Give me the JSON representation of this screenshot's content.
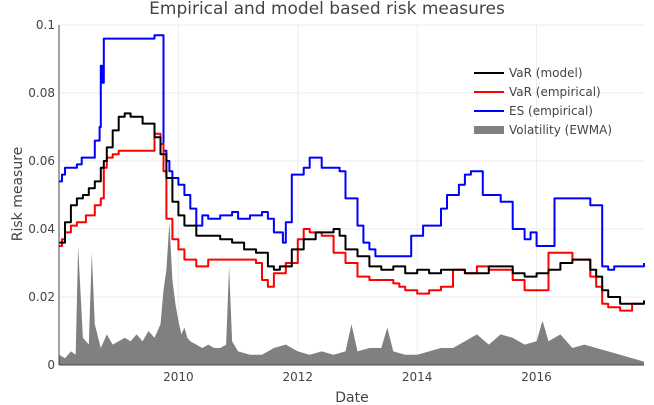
{
  "chart_data": {
    "type": "line",
    "title": "Empirical and model based risk measures",
    "xlabel": "Date",
    "ylabel": "Risk measure",
    "xlim": [
      2008.0,
      2017.8
    ],
    "ylim": [
      0,
      0.1
    ],
    "x_ticks": [
      {
        "value": 2010,
        "label": "2010"
      },
      {
        "value": 2012,
        "label": "2012"
      },
      {
        "value": 2014,
        "label": "2014"
      },
      {
        "value": 2016,
        "label": "2016"
      }
    ],
    "y_ticks": [
      {
        "value": 0,
        "label": "0"
      },
      {
        "value": 0.02,
        "label": "0.02"
      },
      {
        "value": 0.04,
        "label": "0.04"
      },
      {
        "value": 0.06,
        "label": "0.06"
      },
      {
        "value": 0.08,
        "label": "0.08"
      },
      {
        "value": 0.1,
        "label": "0.1"
      }
    ],
    "grid": true,
    "legend_position": "top-right",
    "series": [
      {
        "name": "Volatility (EWMA)",
        "kind": "area",
        "color": "#808080",
        "x": [
          2008.0,
          2008.1,
          2008.2,
          2008.28,
          2008.32,
          2008.4,
          2008.5,
          2008.55,
          2008.6,
          2008.7,
          2008.8,
          2008.9,
          2009.0,
          2009.1,
          2009.2,
          2009.3,
          2009.4,
          2009.5,
          2009.6,
          2009.7,
          2009.75,
          2009.8,
          2009.85,
          2009.9,
          2009.95,
          2010.0,
          2010.05,
          2010.1,
          2010.15,
          2010.2,
          2010.3,
          2010.4,
          2010.5,
          2010.6,
          2010.7,
          2010.8,
          2010.85,
          2010.9,
          2011.0,
          2011.2,
          2011.4,
          2011.6,
          2011.8,
          2012.0,
          2012.2,
          2012.4,
          2012.6,
          2012.8,
          2012.9,
          2013.0,
          2013.2,
          2013.4,
          2013.5,
          2013.6,
          2013.8,
          2014.0,
          2014.2,
          2014.4,
          2014.6,
          2014.8,
          2015.0,
          2015.2,
          2015.4,
          2015.6,
          2015.8,
          2016.0,
          2016.1,
          2016.2,
          2016.4,
          2016.6,
          2016.8,
          2017.0,
          2017.2,
          2017.4,
          2017.6,
          2017.8
        ],
        "values": [
          0.003,
          0.002,
          0.004,
          0.003,
          0.035,
          0.008,
          0.006,
          0.033,
          0.012,
          0.005,
          0.009,
          0.006,
          0.007,
          0.008,
          0.007,
          0.009,
          0.007,
          0.01,
          0.008,
          0.012,
          0.022,
          0.028,
          0.042,
          0.025,
          0.018,
          0.013,
          0.009,
          0.011,
          0.008,
          0.007,
          0.006,
          0.005,
          0.006,
          0.005,
          0.005,
          0.006,
          0.029,
          0.007,
          0.004,
          0.003,
          0.003,
          0.005,
          0.006,
          0.004,
          0.003,
          0.004,
          0.003,
          0.004,
          0.012,
          0.004,
          0.005,
          0.005,
          0.011,
          0.004,
          0.003,
          0.003,
          0.004,
          0.005,
          0.005,
          0.007,
          0.009,
          0.006,
          0.009,
          0.008,
          0.006,
          0.007,
          0.013,
          0.007,
          0.009,
          0.005,
          0.006,
          0.005,
          0.004,
          0.003,
          0.002,
          0.001
        ]
      },
      {
        "name": "ES (empirical)",
        "kind": "line",
        "color": "#0000ff",
        "x": [
          2008.0,
          2008.05,
          2008.1,
          2008.2,
          2008.3,
          2008.38,
          2008.42,
          2008.5,
          2008.6,
          2008.68,
          2008.7,
          2008.72,
          2008.75,
          2008.8,
          2009.0,
          2009.2,
          2009.4,
          2009.6,
          2009.7,
          2009.75,
          2009.8,
          2009.85,
          2009.9,
          2010.0,
          2010.1,
          2010.2,
          2010.3,
          2010.4,
          2010.5,
          2010.7,
          2010.9,
          2011.0,
          2011.2,
          2011.4,
          2011.5,
          2011.6,
          2011.75,
          2011.8,
          2011.9,
          2012.1,
          2012.2,
          2012.4,
          2012.6,
          2012.7,
          2012.8,
          2013.0,
          2013.1,
          2013.2,
          2013.3,
          2013.5,
          2013.7,
          2013.9,
          2014.1,
          2014.3,
          2014.4,
          2014.5,
          2014.7,
          2014.8,
          2014.9,
          2015.0,
          2015.1,
          2015.2,
          2015.4,
          2015.6,
          2015.8,
          2015.9,
          2016.0,
          2016.1,
          2016.3,
          2016.5,
          2016.7,
          2016.9,
          2017.0,
          2017.1,
          2017.2,
          2017.3,
          2017.5,
          2017.6,
          2017.8
        ],
        "values": [
          0.054,
          0.056,
          0.058,
          0.058,
          0.059,
          0.061,
          0.061,
          0.061,
          0.066,
          0.07,
          0.088,
          0.083,
          0.096,
          0.096,
          0.096,
          0.096,
          0.096,
          0.097,
          0.097,
          0.063,
          0.06,
          0.057,
          0.055,
          0.053,
          0.05,
          0.046,
          0.041,
          0.044,
          0.043,
          0.044,
          0.045,
          0.043,
          0.044,
          0.045,
          0.043,
          0.039,
          0.036,
          0.042,
          0.056,
          0.058,
          0.061,
          0.058,
          0.058,
          0.057,
          0.049,
          0.041,
          0.036,
          0.034,
          0.032,
          0.032,
          0.032,
          0.038,
          0.041,
          0.041,
          0.046,
          0.05,
          0.053,
          0.056,
          0.057,
          0.057,
          0.05,
          0.05,
          0.048,
          0.04,
          0.037,
          0.039,
          0.035,
          0.035,
          0.049,
          0.049,
          0.049,
          0.047,
          0.047,
          0.029,
          0.028,
          0.029,
          0.029,
          0.029,
          0.03
        ]
      },
      {
        "name": "VaR (empirical)",
        "kind": "line",
        "color": "#ff0000",
        "x": [
          2008.0,
          2008.05,
          2008.1,
          2008.2,
          2008.3,
          2008.4,
          2008.45,
          2008.5,
          2008.6,
          2008.7,
          2008.75,
          2008.8,
          2008.9,
          2009.0,
          2009.2,
          2009.4,
          2009.6,
          2009.7,
          2009.75,
          2009.8,
          2009.9,
          2010.0,
          2010.1,
          2010.3,
          2010.5,
          2010.7,
          2010.9,
          2011.1,
          2011.3,
          2011.4,
          2011.5,
          2011.6,
          2011.8,
          2012.0,
          2012.1,
          2012.2,
          2012.4,
          2012.6,
          2012.8,
          2013.0,
          2013.2,
          2013.4,
          2013.6,
          2013.7,
          2013.8,
          2014.0,
          2014.2,
          2014.4,
          2014.6,
          2014.8,
          2015.0,
          2015.2,
          2015.4,
          2015.6,
          2015.8,
          2016.0,
          2016.1,
          2016.2,
          2016.4,
          2016.6,
          2016.8,
          2016.9,
          2017.0,
          2017.1,
          2017.2,
          2017.4,
          2017.6,
          2017.8
        ],
        "values": [
          0.035,
          0.037,
          0.039,
          0.041,
          0.042,
          0.042,
          0.044,
          0.044,
          0.047,
          0.049,
          0.058,
          0.061,
          0.062,
          0.063,
          0.063,
          0.063,
          0.068,
          0.065,
          0.057,
          0.043,
          0.037,
          0.034,
          0.031,
          0.029,
          0.031,
          0.031,
          0.031,
          0.031,
          0.03,
          0.025,
          0.023,
          0.027,
          0.03,
          0.037,
          0.04,
          0.039,
          0.038,
          0.033,
          0.03,
          0.026,
          0.025,
          0.025,
          0.024,
          0.023,
          0.022,
          0.021,
          0.022,
          0.023,
          0.028,
          0.027,
          0.029,
          0.028,
          0.028,
          0.025,
          0.022,
          0.022,
          0.022,
          0.033,
          0.033,
          0.031,
          0.031,
          0.026,
          0.023,
          0.018,
          0.017,
          0.016,
          0.018,
          0.018
        ]
      },
      {
        "name": "VaR (model)",
        "kind": "line",
        "color": "#000000",
        "x": [
          2008.0,
          2008.1,
          2008.2,
          2008.3,
          2008.4,
          2008.5,
          2008.6,
          2008.7,
          2008.75,
          2008.8,
          2008.9,
          2009.0,
          2009.1,
          2009.2,
          2009.4,
          2009.6,
          2009.7,
          2009.8,
          2009.9,
          2010.0,
          2010.1,
          2010.3,
          2010.5,
          2010.7,
          2010.9,
          2011.1,
          2011.3,
          2011.5,
          2011.6,
          2011.7,
          2011.9,
          2012.1,
          2012.3,
          2012.5,
          2012.6,
          2012.7,
          2012.8,
          2013.0,
          2013.2,
          2013.4,
          2013.6,
          2013.8,
          2014.0,
          2014.2,
          2014.4,
          2014.6,
          2014.8,
          2015.0,
          2015.2,
          2015.4,
          2015.6,
          2015.8,
          2016.0,
          2016.2,
          2016.4,
          2016.6,
          2016.8,
          2016.9,
          2017.0,
          2017.1,
          2017.2,
          2017.4,
          2017.6,
          2017.8
        ],
        "values": [
          0.036,
          0.042,
          0.047,
          0.049,
          0.05,
          0.052,
          0.054,
          0.058,
          0.06,
          0.064,
          0.069,
          0.073,
          0.074,
          0.073,
          0.071,
          0.067,
          0.062,
          0.055,
          0.048,
          0.044,
          0.041,
          0.038,
          0.038,
          0.037,
          0.036,
          0.034,
          0.033,
          0.029,
          0.028,
          0.029,
          0.034,
          0.037,
          0.039,
          0.039,
          0.04,
          0.038,
          0.034,
          0.032,
          0.029,
          0.028,
          0.029,
          0.027,
          0.028,
          0.027,
          0.028,
          0.028,
          0.027,
          0.027,
          0.029,
          0.029,
          0.027,
          0.026,
          0.027,
          0.028,
          0.03,
          0.031,
          0.031,
          0.028,
          0.026,
          0.022,
          0.02,
          0.018,
          0.018,
          0.019
        ]
      }
    ],
    "legend": [
      {
        "label": "VaR (model)",
        "color": "#000000",
        "kind": "line"
      },
      {
        "label": "VaR (empirical)",
        "color": "#ff0000",
        "kind": "line"
      },
      {
        "label": "ES (empirical)",
        "color": "#0000ff",
        "kind": "line"
      },
      {
        "label": "Volatility (EWMA)",
        "color": "#808080",
        "kind": "area"
      }
    ]
  }
}
